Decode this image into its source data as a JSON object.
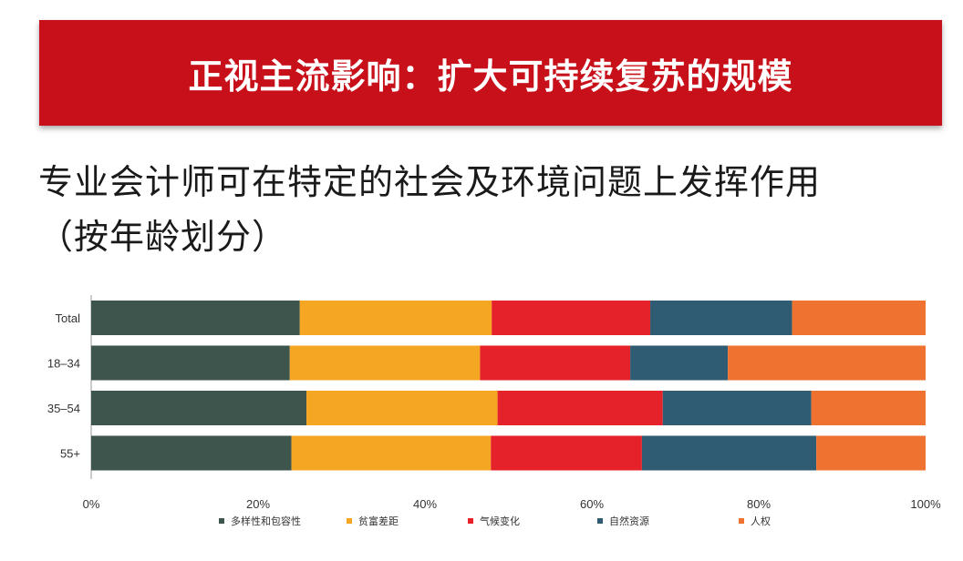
{
  "header": {
    "title": "正视主流影响：扩大可持续复苏的规模"
  },
  "subtitle": {
    "line1": "专业会计师可在特定的社会及环境问题上发挥作用",
    "line2": "（按年龄划分）"
  },
  "chart_data": {
    "type": "bar",
    "orientation": "horizontal",
    "stacked": true,
    "categories": [
      "Total",
      "18–34",
      "35–54",
      "55+"
    ],
    "series": [
      {
        "name": "多样性和包容性",
        "color": "#3e554d",
        "values": [
          25,
          23.8,
          25.8,
          24
        ]
      },
      {
        "name": "贫富差距",
        "color": "#f5a623",
        "values": [
          23,
          22.8,
          22.9,
          23.9
        ]
      },
      {
        "name": "气候变化",
        "color": "#e52229",
        "values": [
          19,
          18,
          19.8,
          18.1
        ]
      },
      {
        "name": "自然资源",
        "color": "#2f5c72",
        "values": [
          17,
          11.7,
          17.8,
          20.9
        ]
      },
      {
        "name": "人权",
        "color": "#f07230",
        "values": [
          16,
          23.7,
          13.7,
          13.1
        ]
      }
    ],
    "x_ticks": [
      "0%",
      "20%",
      "40%",
      "60%",
      "80%",
      "100%"
    ],
    "xlim": [
      0,
      100
    ],
    "legend": "bottom",
    "grid": false
  }
}
